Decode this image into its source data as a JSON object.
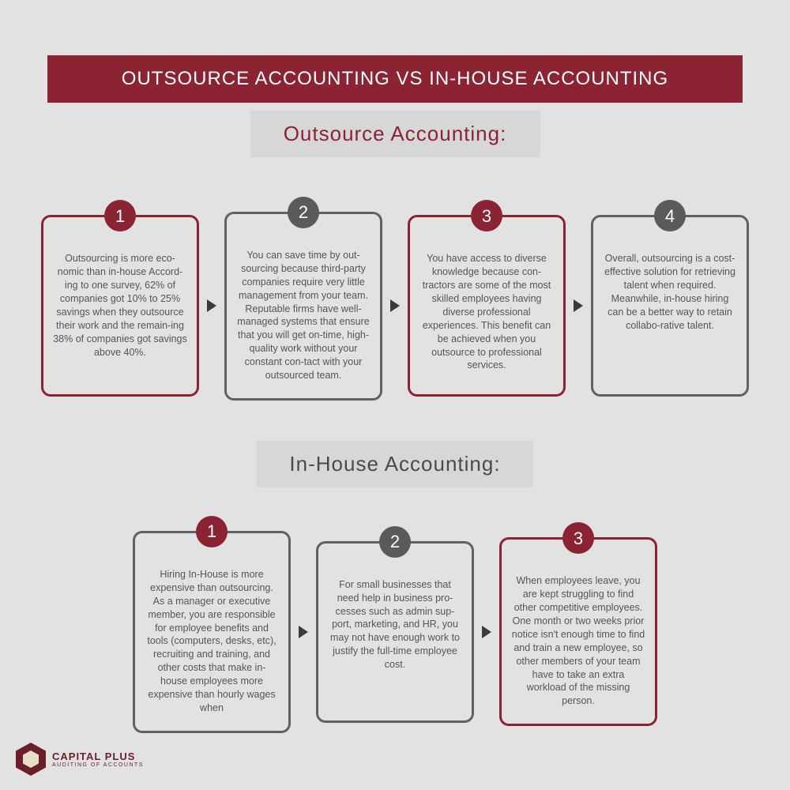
{
  "colors": {
    "primary": "#8b2332",
    "gray": "#616161",
    "badge_gray": "#5a5a5a",
    "title_text": "#8b2332",
    "section2_text": "#4a4a4a",
    "bg": "#e2e2e2",
    "section_bg": "#d7d7d7"
  },
  "banner": "OUTSOURCE ACCOUNTING VS IN-HOUSE ACCOUNTING",
  "section1": {
    "title": "Outsource Accounting:",
    "cards": [
      {
        "num": "1",
        "border": "#8b2332",
        "badge": "#8b2332",
        "text": "Outsourcing is more eco-nomic than in-house Accord-ing to one survey, 62% of companies got 10% to 25% savings when they outsource their work and the remain-ing 38% of companies got savings above 40%."
      },
      {
        "num": "2",
        "border": "#616161",
        "badge": "#5a5a5a",
        "text": "You can save time by out-sourcing because third-party companies require very little management from your team. Reputable firms have well-managed systems that ensure that you will get on-time, high-quality work without your constant con-tact with your outsourced team."
      },
      {
        "num": "3",
        "border": "#8b2332",
        "badge": "#8b2332",
        "text": "You have access to diverse knowledge because con-tractors are some of the most skilled employees having diverse professional experiences. This benefit can be achieved when you outsource to professional services."
      },
      {
        "num": "4",
        "border": "#616161",
        "badge": "#5a5a5a",
        "text": "Overall, outsourcing is a cost-effective solution for retrieving talent when required. Meanwhile, in-house hiring can be a better way to retain collabo-rative talent."
      }
    ]
  },
  "section2": {
    "title": "In-House Accounting:",
    "cards": [
      {
        "num": "1",
        "border": "#616161",
        "badge": "#8b2332",
        "text": "Hiring In-House is more expensive than outsourcing. As a manager or executive member, you are responsible for employee benefits and tools (computers, desks, etc), recruiting and training, and other costs that make in-house employees more expensive than hourly wages when"
      },
      {
        "num": "2",
        "border": "#616161",
        "badge": "#5a5a5a",
        "text": "For small businesses that need help in business pro-cesses such as admin sup-port, marketing, and HR, you may not have enough work to justify the full-time employee cost."
      },
      {
        "num": "3",
        "border": "#8b2332",
        "badge": "#8b2332",
        "text": "When employees leave, you are kept struggling to find other competitive employees. One month or two weeks prior notice isn't enough time to find and train a new employee, so other members of your team have to take an extra workload of the missing person."
      }
    ]
  },
  "logo": {
    "name": "CAPITAL PLUS",
    "sub": "AUDITING OF ACCOUNTS"
  }
}
